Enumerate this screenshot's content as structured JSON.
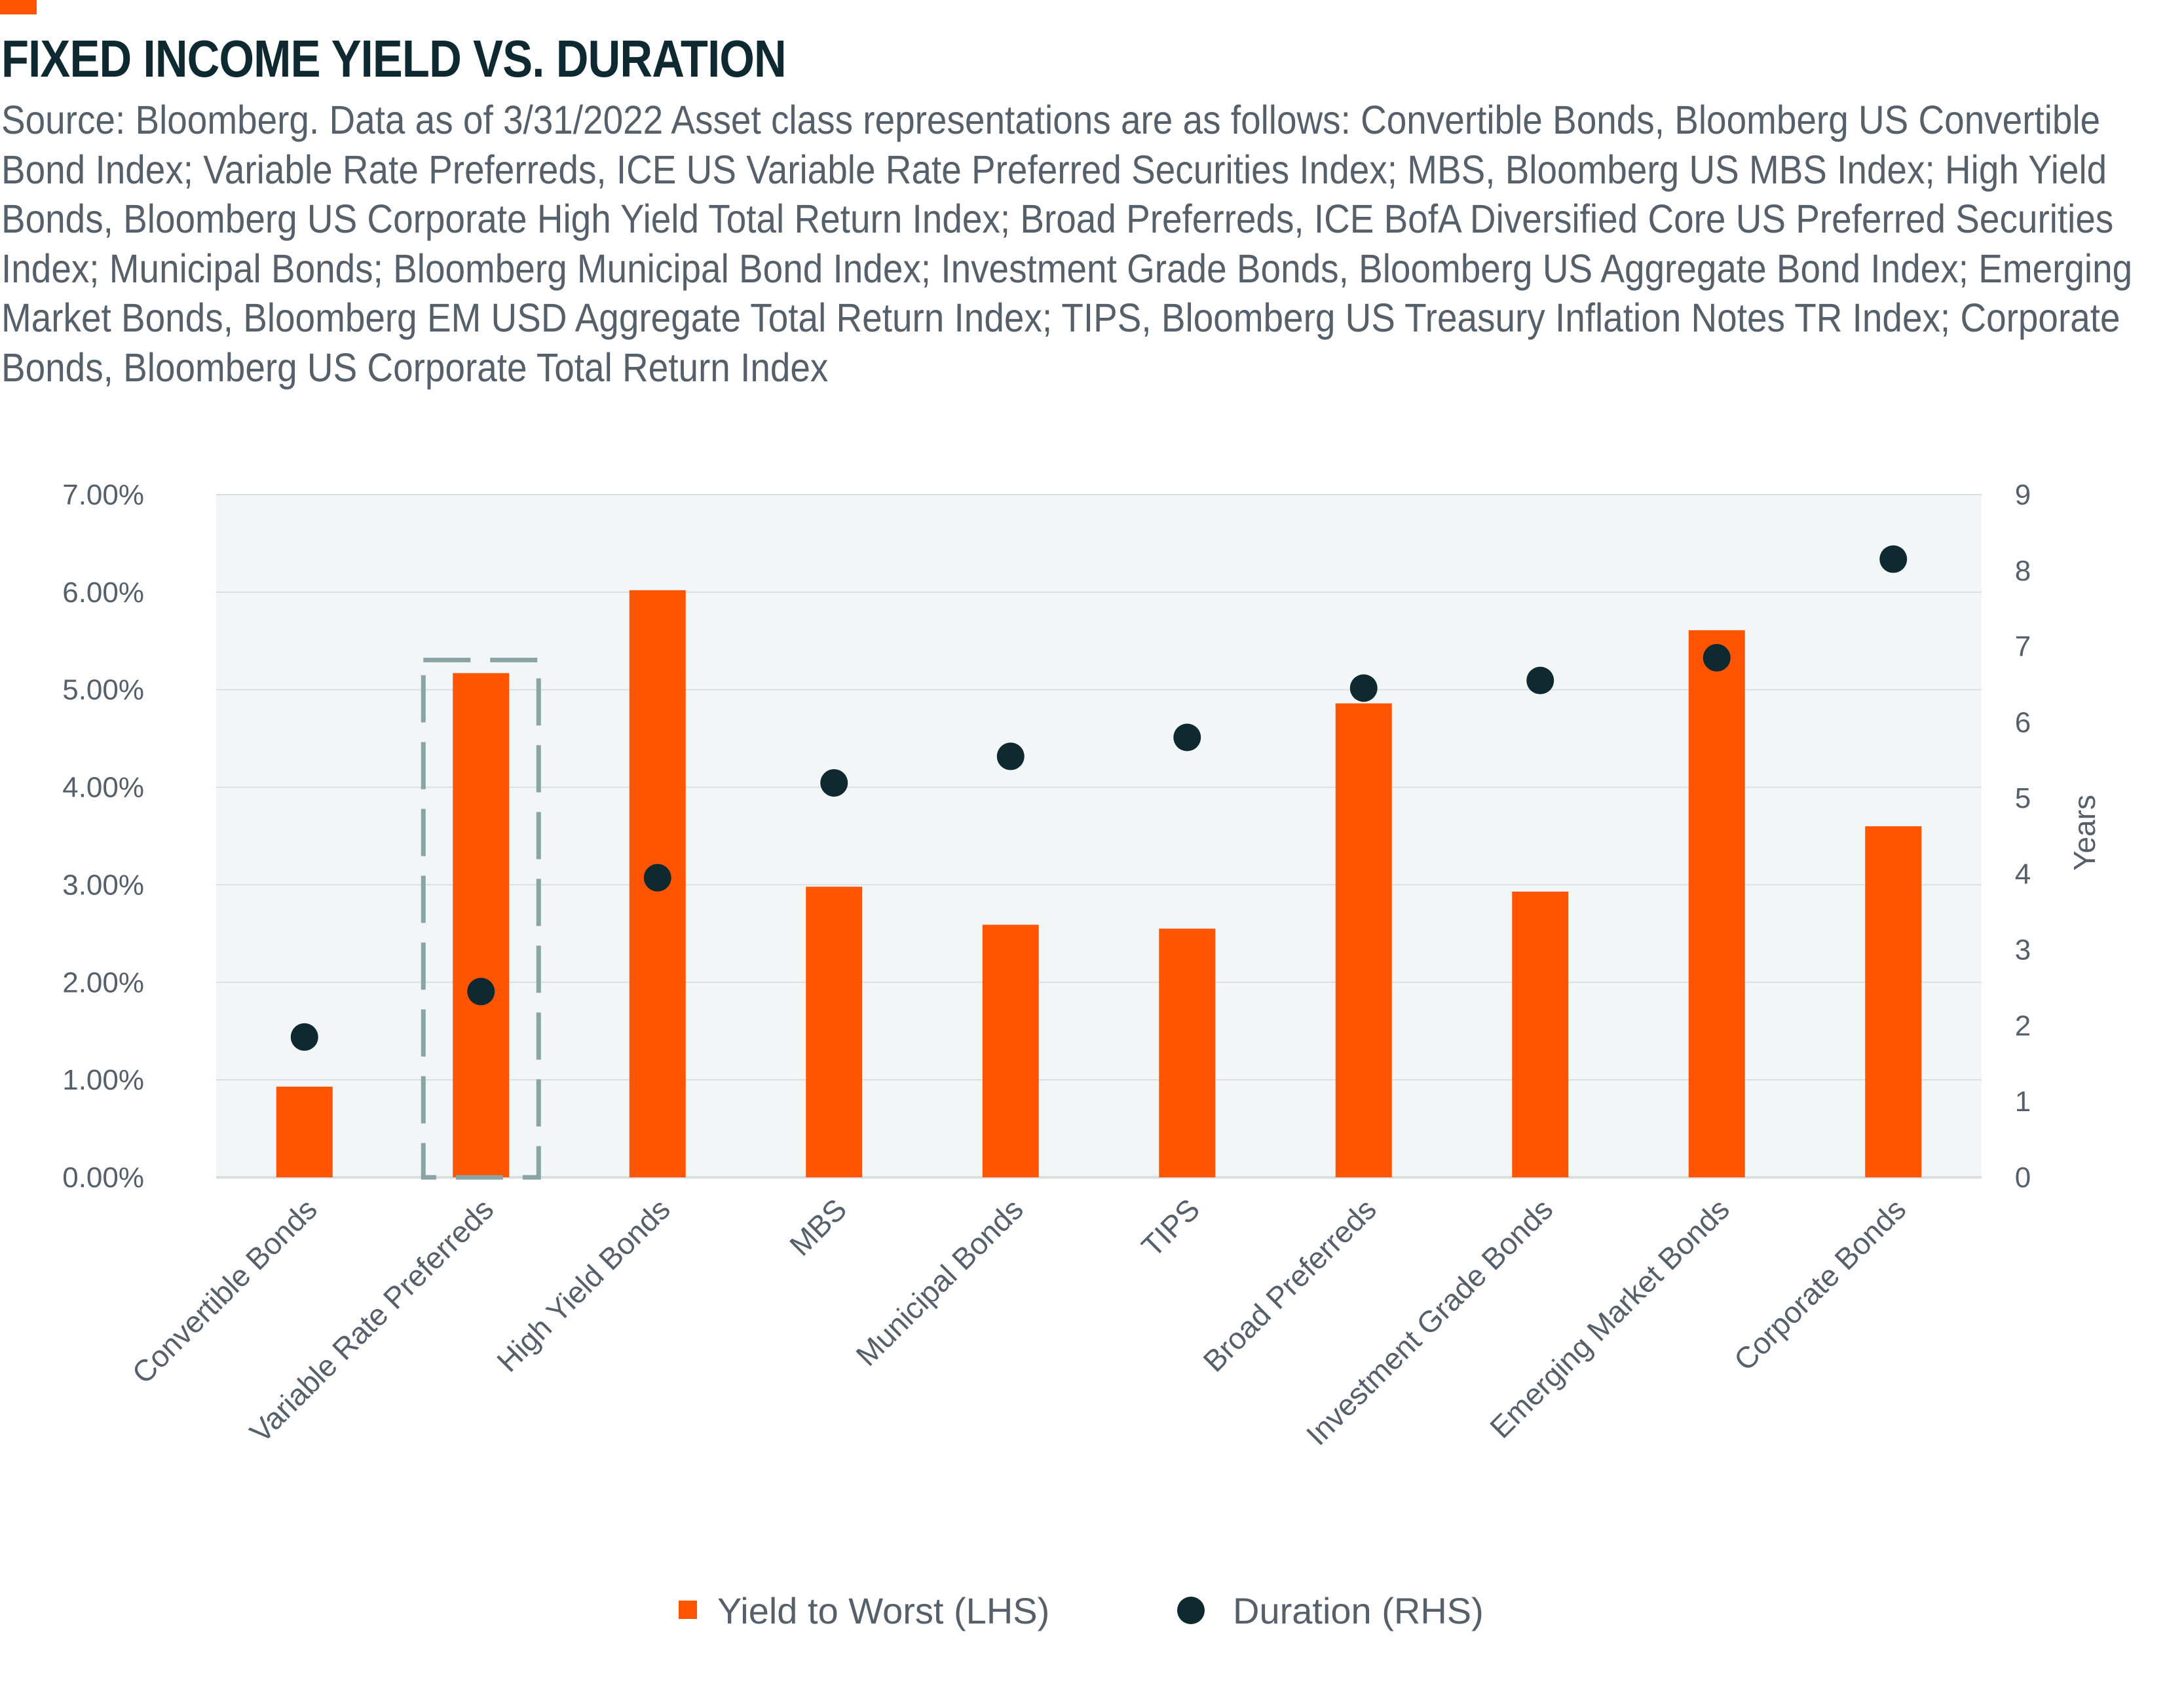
{
  "colors": {
    "accent": "#ff5500",
    "bar": "#ff5500",
    "dot": "#0e2a30",
    "title": "#0e2a30",
    "text": "#56606a",
    "plot_background": "#f3f6f6",
    "grid": "#d9dfe0",
    "highlight_box": "#8aa4a6"
  },
  "title": "FIXED INCOME YIELD VS. DURATION",
  "source_note": "Source: Bloomberg. Data as of 3/31/2022 Asset class representations are as follows: Convertible Bonds, Bloomberg US Convertible Bond Index; Variable Rate Preferreds, ICE US Variable Rate Preferred Securities Index; MBS, Bloomberg US MBS Index; High Yield Bonds, Bloomberg US Corporate High Yield Total Return Index; Broad Preferreds, ICE BofA Diversified Core US Preferred Securities Index; Municipal Bonds; Bloomberg Municipal Bond Index; Investment Grade Bonds, Bloomberg US Aggregate Bond Index; Emerging Market Bonds, Bloomberg EM USD Aggregate Total Return Index; TIPS, Bloomberg US Treasury Inflation Notes TR Index; Corporate Bonds, Bloomberg US Corporate Total Return Index",
  "chart_data": {
    "type": "bar",
    "categories": [
      "Convertible Bonds",
      "Variable Rate Preferreds",
      "High Yield Bonds",
      "MBS",
      "Municipal Bonds",
      "TIPS",
      "Broad Preferreds",
      "Investment Grade Bonds",
      "Emerging Market Bonds",
      "Corporate Bonds"
    ],
    "series": [
      {
        "name": "Yield to Worst (LHS)",
        "type": "bar",
        "axis": "left",
        "values": [
          0.93,
          5.17,
          6.02,
          2.98,
          2.59,
          2.55,
          4.86,
          2.93,
          5.61,
          3.6
        ]
      },
      {
        "name": "Duration (RHS)",
        "type": "scatter",
        "axis": "right",
        "values": [
          1.85,
          2.45,
          3.95,
          5.2,
          5.55,
          5.8,
          6.45,
          6.55,
          6.85,
          8.15
        ]
      }
    ],
    "y_left": {
      "min": 0,
      "max": 7,
      "ticks": [
        "0.00%",
        "1.00%",
        "2.00%",
        "3.00%",
        "4.00%",
        "5.00%",
        "6.00%",
        "7.00%"
      ]
    },
    "y_right": {
      "min": 0,
      "max": 9,
      "ticks": [
        "0",
        "1",
        "2",
        "3",
        "4",
        "5",
        "6",
        "7",
        "8",
        "9"
      ],
      "label": "Years"
    },
    "highlighted_category": "Variable Rate Preferreds",
    "grid": true,
    "legend": "bottom"
  }
}
